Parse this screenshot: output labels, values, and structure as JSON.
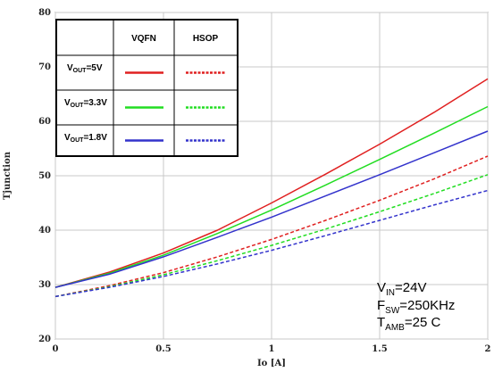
{
  "chart_data": {
    "type": "line",
    "xlabel": "Io [A]",
    "ylabel": "Tjunction",
    "xlim": [
      0,
      2
    ],
    "ylim": [
      20,
      80
    ],
    "x_ticks": [
      "0",
      "0.5",
      "1",
      "1.5",
      "2"
    ],
    "y_ticks": [
      "20",
      "30",
      "40",
      "50",
      "60",
      "70",
      "80"
    ],
    "grid": true,
    "x": [
      0,
      0.25,
      0.5,
      0.75,
      1.0,
      1.25,
      1.5,
      1.75,
      2.0
    ],
    "series": [
      {
        "package": "VQFN",
        "vout": "5V",
        "color": "#e02020",
        "dashed": false,
        "values": [
          29.5,
          32.3,
          35.8,
          40.0,
          45.0,
          50.3,
          55.8,
          61.6,
          67.8
        ]
      },
      {
        "package": "VQFN",
        "vout": "3.3V",
        "color": "#22dd22",
        "dashed": false,
        "values": [
          29.5,
          32.1,
          35.4,
          39.4,
          43.7,
          48.3,
          53.0,
          57.8,
          62.7
        ]
      },
      {
        "package": "VQFN",
        "vout": "1.8V",
        "color": "#3333cc",
        "dashed": false,
        "values": [
          29.5,
          31.9,
          35.1,
          38.7,
          42.4,
          46.3,
          50.2,
          54.2,
          58.2
        ]
      },
      {
        "package": "HSOP",
        "vout": "5V",
        "color": "#e02020",
        "dashed": true,
        "values": [
          27.8,
          29.8,
          32.2,
          35.1,
          38.3,
          41.8,
          45.5,
          49.4,
          53.6
        ]
      },
      {
        "package": "HSOP",
        "vout": "3.3V",
        "color": "#22dd22",
        "dashed": true,
        "values": [
          27.8,
          29.6,
          31.8,
          34.4,
          37.2,
          40.2,
          43.4,
          46.7,
          50.2
        ]
      },
      {
        "package": "HSOP",
        "vout": "1.8V",
        "color": "#3333cc",
        "dashed": true,
        "values": [
          27.8,
          29.5,
          31.5,
          33.8,
          36.3,
          39.0,
          41.8,
          44.6,
          47.3
        ]
      }
    ],
    "legend": {
      "columns": [
        "VQFN",
        "HSOP"
      ],
      "rows": [
        {
          "main": "V",
          "sub": "OUT",
          "rest": "=5V",
          "color": "#e02020"
        },
        {
          "main": "V",
          "sub": "OUT",
          "rest": "=3.3V",
          "color": "#22dd22"
        },
        {
          "main": "V",
          "sub": "OUT",
          "rest": "=1.8V",
          "color": "#3333cc"
        }
      ],
      "placement": "top-left"
    },
    "conditions": [
      {
        "main": "V",
        "sub": "IN",
        "rest": "=24V"
      },
      {
        "main": "F",
        "sub": "SW",
        "rest": "=250KHz"
      },
      {
        "main": "T",
        "sub": "AMB",
        "rest": "=25 C"
      }
    ]
  }
}
